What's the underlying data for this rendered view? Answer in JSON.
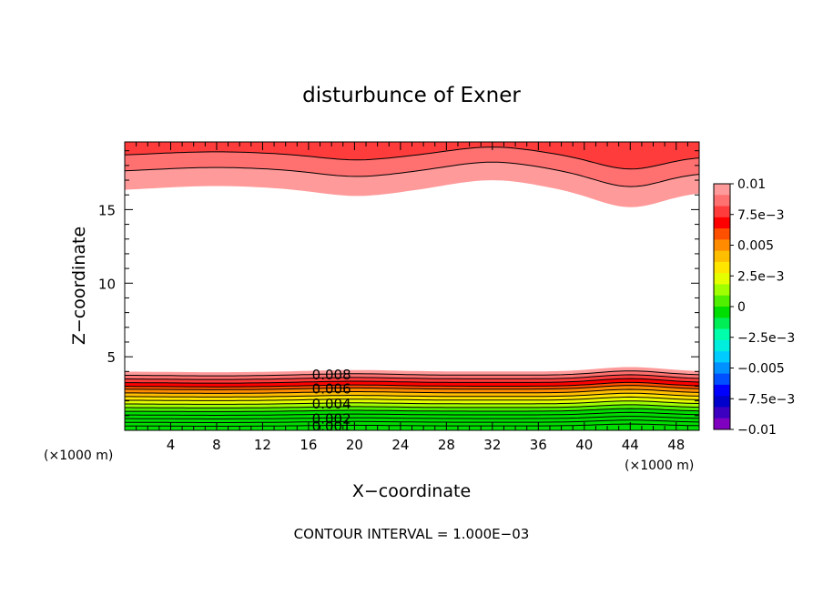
{
  "chart_data": {
    "type": "contour",
    "title": "disturbunce of Exner",
    "xlabel": "X−coordinate",
    "ylabel": "Z−coordinate",
    "x_unit": "(×1000 m)",
    "y_unit": "(×1000 m)",
    "xlim": [
      0,
      50
    ],
    "ylim": [
      0,
      19.6
    ],
    "x_ticks": [
      4,
      8,
      12,
      16,
      20,
      24,
      28,
      32,
      36,
      40,
      44,
      48
    ],
    "y_ticks": [
      5,
      10,
      15
    ],
    "footer": "CONTOUR INTERVAL = 1.000E−03",
    "colorbar": {
      "tick_labels": [
        "0.01",
        "7.5e−3",
        "0.005",
        "2.5e−3",
        "0",
        "−2.5e−3",
        "−0.005",
        "−7.5e−3",
        "−0.01"
      ],
      "colors_top_to_bottom": [
        "#ff9a9a",
        "#ff7070",
        "#ff3c3c",
        "#ff0000",
        "#ff5000",
        "#ff8c00",
        "#ffbe00",
        "#ffe600",
        "#e6ff00",
        "#a0ff00",
        "#50ee00",
        "#00dd00",
        "#00ee55",
        "#00ffaa",
        "#00eedd",
        "#00ccff",
        "#0090ff",
        "#0050ff",
        "#0000ff",
        "#0000cc",
        "#3c00c0",
        "#8000c0"
      ]
    },
    "contour_labels": [
      "0.008",
      "0.006",
      "0.004",
      "0.002",
      "0.001"
    ],
    "label_x": 18,
    "lower_layer": {
      "levels": [
        0.0085,
        0.008,
        0.0075,
        0.007,
        0.0065,
        0.006,
        0.0055,
        0.005,
        0.0045,
        0.004,
        0.0035,
        0.003,
        0.0025,
        0.002,
        0.0015,
        0.001
      ],
      "base_height": [
        4.0,
        3.75,
        3.5,
        3.25,
        3.0,
        2.8,
        2.55,
        2.3,
        2.05,
        1.8,
        1.55,
        1.3,
        1.05,
        0.8,
        0.55,
        0.3
      ],
      "colors": [
        "#ff9a9a",
        "#ff7070",
        "#ff3c3c",
        "#ff0000",
        "#ff5000",
        "#ff8c00",
        "#ffbe00",
        "#ffe600",
        "#e6ff00",
        "#a0ff00",
        "#50ee00",
        "#00dd00",
        "#00dd00",
        "#00dd00",
        "#00dd00",
        "#00dd00"
      ]
    },
    "upper_layer": {
      "levels": [
        0.0085,
        0.009,
        0.0095
      ],
      "base_height": [
        16.2,
        17.5,
        18.6
      ],
      "colors": [
        "#ff9a9a",
        "#ff7070",
        "#ff3c3c"
      ]
    }
  }
}
